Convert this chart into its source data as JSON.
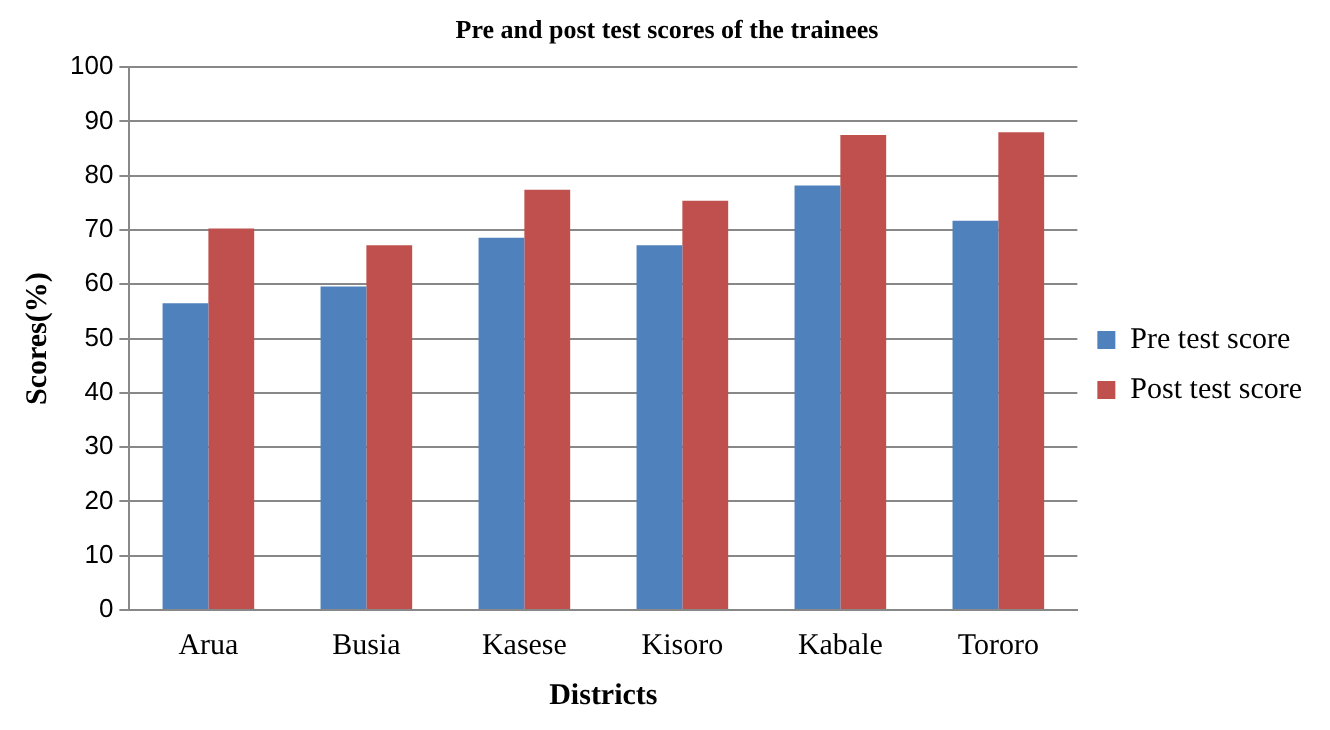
{
  "chart_data": {
    "type": "bar",
    "title": "Pre and post test scores of the trainees",
    "xlabel": "Districts",
    "ylabel": "Scores(%)",
    "categories": [
      "Arua",
      "Busia",
      "Kasese",
      "Kisoro",
      "Kabale",
      "Tororo"
    ],
    "series": [
      {
        "name": "Pre test score",
        "color": "#4f81bd",
        "values": [
          56.5,
          59.6,
          68.6,
          67.2,
          78.2,
          71.7
        ]
      },
      {
        "name": "Post test score",
        "color": "#c0504d",
        "values": [
          70.3,
          67.2,
          77.4,
          75.4,
          87.5,
          88.0
        ]
      }
    ],
    "ylim": [
      0,
      100
    ],
    "yticks": [
      0,
      10,
      20,
      30,
      40,
      50,
      60,
      70,
      80,
      90,
      100
    ],
    "grid": "y",
    "legend": "right"
  }
}
